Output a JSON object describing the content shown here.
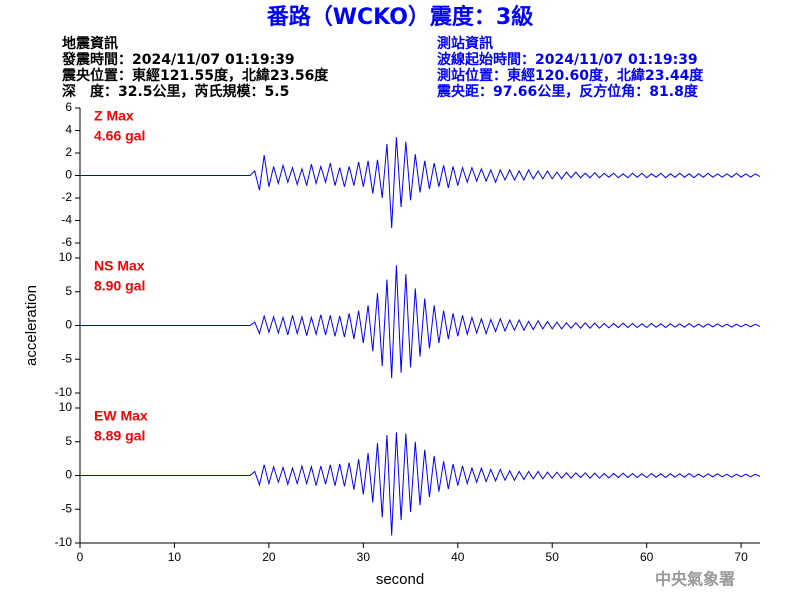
{
  "header": {
    "title": "番路（WCKO）震度：3級",
    "left": [
      "地震資訊",
      "發震時間：2024/11/07 01:19:39",
      "震央位置：東經121.55度，北緯23.56度",
      "深　度：32.5公里，芮氏規模：5.5"
    ],
    "right": [
      "測站資訊",
      "波線起始時間：2024/11/07 01:19:39",
      "測站位置：東經120.60度，北緯23.44度",
      "震央距：97.66公里，反方位角：81.8度"
    ]
  },
  "footer": "中央氣象署",
  "chart_data": [
    {
      "type": "line",
      "label": "Z Max",
      "max_label": "4.66 gal",
      "color": "#0000ff",
      "label_color": "#ff0000",
      "xlim": [
        0,
        72
      ],
      "ylim": [
        -6,
        6
      ],
      "yticks": [
        -6,
        -4,
        -2,
        0,
        2,
        4,
        6
      ],
      "x": [
        0,
        18,
        18.5,
        19,
        19.5,
        20,
        20.5,
        21,
        21.5,
        22,
        22.5,
        23,
        23.5,
        24,
        24.5,
        25,
        25.5,
        26,
        26.5,
        27,
        27.5,
        28,
        28.5,
        29,
        29.5,
        30,
        30.5,
        31,
        31.5,
        32,
        32.5,
        33,
        33.5,
        34,
        34.5,
        35,
        35.5,
        36,
        36.5,
        37,
        37.5,
        38,
        38.5,
        39,
        39.5,
        40,
        40.5,
        41,
        41.5,
        42,
        42.5,
        43,
        43.5,
        44,
        44.5,
        45,
        45.5,
        46,
        46.5,
        47,
        47.5,
        48,
        48.5,
        49,
        49.5,
        50,
        50.5,
        51,
        51.5,
        52,
        52.5,
        53,
        53.5,
        54,
        54.5,
        55,
        55.5,
        56,
        56.5,
        57,
        57.5,
        58,
        58.5,
        59,
        59.5,
        60,
        60.5,
        61,
        61.5,
        62,
        62.5,
        63,
        63.5,
        64,
        64.5,
        65,
        65.5,
        66,
        66.5,
        67,
        67.5,
        68,
        68.5,
        69,
        69.5,
        70,
        70.5,
        71,
        71.5,
        72
      ],
      "values": [
        0,
        0,
        0.4,
        -1.3,
        1.8,
        -1.0,
        0.8,
        -0.7,
        0.9,
        -0.6,
        0.7,
        -0.8,
        0.6,
        -0.9,
        1.0,
        -0.7,
        0.8,
        -0.6,
        1.1,
        -0.9,
        0.7,
        -1.0,
        0.8,
        -0.9,
        1.2,
        -1.0,
        1.3,
        -1.6,
        1.4,
        -2.0,
        2.8,
        -4.66,
        3.4,
        -2.8,
        3.0,
        -2.2,
        1.9,
        -1.5,
        1.3,
        -1.2,
        1.1,
        -1.0,
        0.9,
        -1.1,
        0.8,
        -0.9,
        0.7,
        -0.6,
        0.7,
        -0.5,
        0.6,
        -0.5,
        0.5,
        -0.6,
        0.5,
        -0.4,
        0.5,
        -0.4,
        0.4,
        -0.4,
        0.5,
        -0.3,
        0.4,
        -0.3,
        0.4,
        -0.3,
        0.3,
        -0.3,
        0.3,
        -0.2,
        0.3,
        -0.2,
        0.2,
        -0.2,
        0.25,
        -0.2,
        0.2,
        -0.15,
        0.2,
        -0.2,
        0.15,
        -0.2,
        0.2,
        -0.15,
        0.2,
        -0.2,
        0.15,
        -0.15,
        0.2,
        -0.2,
        0.15,
        -0.15,
        0.2,
        -0.15,
        0.15,
        -0.2,
        0.15,
        -0.15,
        0.2,
        -0.15,
        0.15,
        -0.15,
        0.15,
        -0.15,
        0.2,
        -0.15,
        0.15,
        -0.15,
        0.15,
        -0.1
      ]
    },
    {
      "type": "line",
      "label": "NS Max",
      "max_label": "8.90 gal",
      "color": "#0000ff",
      "label_color": "#ff0000",
      "ylabel": "acceleration",
      "xlim": [
        0,
        72
      ],
      "ylim": [
        -10,
        10
      ],
      "yticks": [
        -10,
        -5,
        0,
        5,
        10
      ],
      "x": [
        0,
        18,
        18.5,
        19,
        19.5,
        20,
        20.5,
        21,
        21.5,
        22,
        22.5,
        23,
        23.5,
        24,
        24.5,
        25,
        25.5,
        26,
        26.5,
        27,
        27.5,
        28,
        28.5,
        29,
        29.5,
        30,
        30.5,
        31,
        31.5,
        32,
        32.5,
        33,
        33.5,
        34,
        34.5,
        35,
        35.5,
        36,
        36.5,
        37,
        37.5,
        38,
        38.5,
        39,
        39.5,
        40,
        40.5,
        41,
        41.5,
        42,
        42.5,
        43,
        43.5,
        44,
        44.5,
        45,
        45.5,
        46,
        46.5,
        47,
        47.5,
        48,
        48.5,
        49,
        49.5,
        50,
        50.5,
        51,
        51.5,
        52,
        52.5,
        53,
        53.5,
        54,
        54.5,
        55,
        55.5,
        56,
        56.5,
        57,
        57.5,
        58,
        58.5,
        59,
        59.5,
        60,
        60.5,
        61,
        61.5,
        62,
        62.5,
        63,
        63.5,
        64,
        64.5,
        65,
        65.5,
        66,
        66.5,
        67,
        67.5,
        68,
        68.5,
        69,
        69.5,
        70,
        70.5,
        71,
        71.5,
        72
      ],
      "values": [
        0,
        0,
        0.5,
        -1.2,
        1.4,
        -1.0,
        1.3,
        -1.1,
        1.2,
        -1.4,
        1.5,
        -1.2,
        1.3,
        -1.5,
        1.2,
        -1.3,
        1.6,
        -1.4,
        1.5,
        -1.6,
        1.4,
        -1.7,
        1.8,
        -2.0,
        2.2,
        -2.6,
        3.0,
        -3.8,
        4.8,
        -6.0,
        6.8,
        -7.8,
        8.9,
        -7.0,
        7.6,
        -6.2,
        5.5,
        -4.6,
        4.0,
        -3.4,
        3.0,
        -2.6,
        2.2,
        -2.0,
        1.8,
        -1.6,
        1.5,
        -1.3,
        1.2,
        -1.1,
        1.0,
        -1.2,
        0.9,
        -0.9,
        1.0,
        -0.8,
        0.8,
        -0.7,
        0.8,
        -0.7,
        0.6,
        -0.6,
        0.7,
        -0.5,
        0.6,
        -0.5,
        0.5,
        -0.5,
        0.4,
        -0.4,
        0.4,
        -0.4,
        0.4,
        -0.4,
        0.35,
        -0.4,
        0.3,
        -0.35,
        0.3,
        -0.3,
        0.35,
        -0.3,
        0.3,
        -0.3,
        0.25,
        -0.3,
        0.3,
        -0.25,
        0.25,
        -0.3,
        0.25,
        -0.25,
        0.25,
        -0.25,
        0.3,
        -0.25,
        0.2,
        -0.25,
        0.25,
        -0.2,
        0.25,
        -0.2,
        0.2,
        -0.25,
        0.2,
        -0.2,
        0.2,
        -0.2,
        0.2,
        -0.15
      ]
    },
    {
      "type": "line",
      "label": "EW Max",
      "max_label": "8.89 gal",
      "color": "#0000ff",
      "label_color": "#ff0000",
      "xlabel": "second",
      "xlim": [
        0,
        72
      ],
      "ylim": [
        -10,
        10
      ],
      "yticks": [
        -10,
        -5,
        0,
        5,
        10
      ],
      "xticks": [
        0,
        10,
        20,
        30,
        40,
        50,
        60,
        70
      ],
      "x": [
        0,
        18,
        18.5,
        19,
        19.5,
        20,
        20.5,
        21,
        21.5,
        22,
        22.5,
        23,
        23.5,
        24,
        24.5,
        25,
        25.5,
        26,
        26.5,
        27,
        27.5,
        28,
        28.5,
        29,
        29.5,
        30,
        30.5,
        31,
        31.5,
        32,
        32.5,
        33,
        33.5,
        34,
        34.5,
        35,
        35.5,
        36,
        36.5,
        37,
        37.5,
        38,
        38.5,
        39,
        39.5,
        40,
        40.5,
        41,
        41.5,
        42,
        42.5,
        43,
        43.5,
        44,
        44.5,
        45,
        45.5,
        46,
        46.5,
        47,
        47.5,
        48,
        48.5,
        49,
        49.5,
        50,
        50.5,
        51,
        51.5,
        52,
        52.5,
        53,
        53.5,
        54,
        54.5,
        55,
        55.5,
        56,
        56.5,
        57,
        57.5,
        58,
        58.5,
        59,
        59.5,
        60,
        60.5,
        61,
        61.5,
        62,
        62.5,
        63,
        63.5,
        64,
        64.5,
        65,
        65.5,
        66,
        66.5,
        67,
        67.5,
        68,
        68.5,
        69,
        69.5,
        70,
        70.5,
        71,
        71.5,
        72
      ],
      "values": [
        0,
        0,
        0.6,
        -1.4,
        1.6,
        -1.2,
        1.3,
        -1.0,
        1.2,
        -1.3,
        1.1,
        -1.2,
        1.4,
        -1.2,
        1.3,
        -1.5,
        1.4,
        -1.3,
        1.6,
        -1.5,
        1.7,
        -1.6,
        1.9,
        -2.1,
        2.4,
        -2.8,
        3.3,
        -4.0,
        4.8,
        -6.2,
        6.0,
        -8.89,
        6.4,
        -6.6,
        6.2,
        -5.4,
        5.0,
        -4.4,
        3.8,
        -3.2,
        2.9,
        -2.4,
        2.1,
        -2.0,
        1.7,
        -1.5,
        1.4,
        -1.2,
        1.1,
        -1.0,
        1.1,
        -0.9,
        0.9,
        -0.8,
        0.9,
        -0.7,
        0.7,
        -0.7,
        0.6,
        -0.6,
        0.6,
        -0.5,
        0.6,
        -0.5,
        0.5,
        -0.4,
        0.5,
        -0.4,
        0.4,
        -0.4,
        0.4,
        -0.3,
        0.4,
        -0.4,
        0.35,
        -0.4,
        0.3,
        -0.35,
        0.3,
        -0.3,
        0.35,
        -0.3,
        0.3,
        -0.3,
        0.25,
        -0.3,
        0.3,
        -0.25,
        0.25,
        -0.3,
        0.25,
        -0.25,
        0.25,
        -0.25,
        0.3,
        -0.25,
        0.2,
        -0.25,
        0.25,
        -0.2,
        0.25,
        -0.2,
        0.2,
        -0.25,
        0.2,
        -0.2,
        0.2,
        -0.2,
        0.2,
        -0.15
      ]
    }
  ]
}
